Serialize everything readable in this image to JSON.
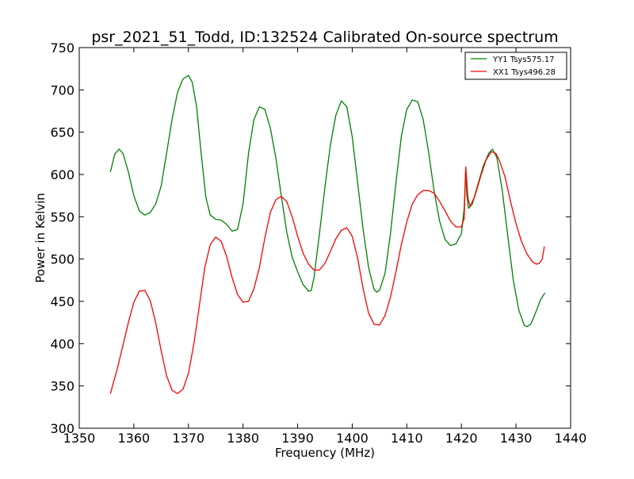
{
  "chart_data": {
    "type": "line",
    "title": "psr_2021_51_Todd, ID:132524 Calibrated On-source spectrum",
    "xlabel": "Frequency (MHz)",
    "ylabel": "Power in Kelvin",
    "xlim": [
      1350,
      1440
    ],
    "ylim": [
      300,
      750
    ],
    "xticks": [
      "1350",
      "1360",
      "1370",
      "1380",
      "1390",
      "1400",
      "1410",
      "1420",
      "1430",
      "1440"
    ],
    "yticks": [
      "300",
      "350",
      "400",
      "450",
      "500",
      "550",
      "600",
      "650",
      "700",
      "750"
    ],
    "grid": false,
    "legend_position": "top-right",
    "series": [
      {
        "name": "YY1 Tsys575.17",
        "color": "#008000",
        "points": [
          [
            1355.7,
            603
          ],
          [
            1356.5,
            624
          ],
          [
            1357.3,
            630
          ],
          [
            1358,
            625
          ],
          [
            1359,
            603
          ],
          [
            1360,
            575
          ],
          [
            1361,
            557
          ],
          [
            1362,
            552
          ],
          [
            1363,
            555
          ],
          [
            1364,
            565
          ],
          [
            1365,
            586
          ],
          [
            1366,
            625
          ],
          [
            1367,
            665
          ],
          [
            1368,
            697
          ],
          [
            1369,
            713
          ],
          [
            1370,
            717
          ],
          [
            1370.7,
            709
          ],
          [
            1371.5,
            680
          ],
          [
            1372.3,
            627
          ],
          [
            1373.2,
            573
          ],
          [
            1374,
            552
          ],
          [
            1375,
            547
          ],
          [
            1376,
            546
          ],
          [
            1377,
            541
          ],
          [
            1378,
            533
          ],
          [
            1379,
            535
          ],
          [
            1380,
            565
          ],
          [
            1381,
            625
          ],
          [
            1382,
            665
          ],
          [
            1383,
            680
          ],
          [
            1384,
            677
          ],
          [
            1385,
            655
          ],
          [
            1386,
            620
          ],
          [
            1387,
            575
          ],
          [
            1388,
            532
          ],
          [
            1389,
            502
          ],
          [
            1390,
            485
          ],
          [
            1391,
            470
          ],
          [
            1392,
            462
          ],
          [
            1392.5,
            463
          ],
          [
            1393,
            478
          ],
          [
            1394,
            530
          ],
          [
            1395,
            585
          ],
          [
            1396,
            635
          ],
          [
            1397,
            670
          ],
          [
            1398,
            687
          ],
          [
            1399,
            680
          ],
          [
            1400,
            645
          ],
          [
            1401,
            590
          ],
          [
            1402,
            535
          ],
          [
            1403,
            490
          ],
          [
            1404,
            464
          ],
          [
            1404.5,
            461
          ],
          [
            1405,
            463
          ],
          [
            1406,
            483
          ],
          [
            1407,
            530
          ],
          [
            1408,
            590
          ],
          [
            1409,
            645
          ],
          [
            1410,
            677
          ],
          [
            1411,
            688
          ],
          [
            1412,
            686
          ],
          [
            1413,
            665
          ],
          [
            1414,
            626
          ],
          [
            1415,
            580
          ],
          [
            1416,
            545
          ],
          [
            1417,
            523
          ],
          [
            1418,
            516
          ],
          [
            1419,
            518
          ],
          [
            1420,
            530
          ],
          [
            1420.5,
            560
          ],
          [
            1420.8,
            607
          ],
          [
            1421,
            575
          ],
          [
            1421.3,
            560
          ],
          [
            1422,
            565
          ],
          [
            1423,
            588
          ],
          [
            1424,
            610
          ],
          [
            1425,
            625
          ],
          [
            1425.7,
            630
          ],
          [
            1426.5,
            620
          ],
          [
            1427.5,
            580
          ],
          [
            1428.5,
            527
          ],
          [
            1429.5,
            475
          ],
          [
            1430.5,
            440
          ],
          [
            1431.5,
            422
          ],
          [
            1432,
            420
          ],
          [
            1432.7,
            423
          ],
          [
            1433.5,
            435
          ],
          [
            1434.5,
            452
          ],
          [
            1435.3,
            460
          ]
        ]
      },
      {
        "name": "XX1 Tsys496.28",
        "color": "#ff0000",
        "points": [
          [
            1355.7,
            341
          ],
          [
            1357,
            371
          ],
          [
            1358,
            398
          ],
          [
            1359,
            425
          ],
          [
            1360,
            449
          ],
          [
            1361,
            462
          ],
          [
            1362,
            463
          ],
          [
            1363,
            451
          ],
          [
            1364,
            425
          ],
          [
            1365,
            392
          ],
          [
            1366,
            362
          ],
          [
            1367,
            345
          ],
          [
            1368,
            341
          ],
          [
            1369,
            346
          ],
          [
            1370,
            365
          ],
          [
            1371,
            400
          ],
          [
            1372,
            445
          ],
          [
            1373,
            490
          ],
          [
            1374,
            517
          ],
          [
            1375,
            526
          ],
          [
            1376,
            521
          ],
          [
            1377,
            503
          ],
          [
            1378,
            478
          ],
          [
            1379,
            458
          ],
          [
            1380,
            449
          ],
          [
            1381,
            450
          ],
          [
            1382,
            465
          ],
          [
            1383,
            490
          ],
          [
            1384,
            525
          ],
          [
            1385,
            555
          ],
          [
            1386,
            570
          ],
          [
            1387,
            574
          ],
          [
            1388,
            568
          ],
          [
            1389,
            550
          ],
          [
            1390,
            527
          ],
          [
            1391,
            507
          ],
          [
            1392,
            494
          ],
          [
            1393,
            487
          ],
          [
            1394,
            487
          ],
          [
            1395,
            495
          ],
          [
            1396,
            509
          ],
          [
            1397,
            524
          ],
          [
            1398,
            534
          ],
          [
            1399,
            537
          ],
          [
            1400,
            527
          ],
          [
            1401,
            501
          ],
          [
            1402,
            465
          ],
          [
            1403,
            436
          ],
          [
            1404,
            423
          ],
          [
            1405,
            422
          ],
          [
            1406,
            433
          ],
          [
            1407,
            455
          ],
          [
            1408,
            485
          ],
          [
            1409,
            517
          ],
          [
            1410,
            544
          ],
          [
            1411,
            565
          ],
          [
            1412,
            576
          ],
          [
            1413,
            581
          ],
          [
            1414,
            581
          ],
          [
            1415,
            578
          ],
          [
            1416,
            568
          ],
          [
            1417,
            557
          ],
          [
            1418,
            545
          ],
          [
            1419,
            538
          ],
          [
            1420,
            538
          ],
          [
            1420.5,
            548
          ],
          [
            1420.8,
            609
          ],
          [
            1421.2,
            572
          ],
          [
            1421.6,
            562
          ],
          [
            1422.5,
            575
          ],
          [
            1423.5,
            597
          ],
          [
            1424.5,
            617
          ],
          [
            1425.5,
            627
          ],
          [
            1426.3,
            625
          ],
          [
            1427,
            616
          ],
          [
            1428,
            597
          ],
          [
            1429,
            568
          ],
          [
            1430,
            542
          ],
          [
            1431,
            521
          ],
          [
            1432,
            506
          ],
          [
            1433,
            497
          ],
          [
            1433.7,
            494
          ],
          [
            1434.3,
            495
          ],
          [
            1434.8,
            500
          ],
          [
            1435.2,
            515
          ]
        ]
      }
    ]
  }
}
